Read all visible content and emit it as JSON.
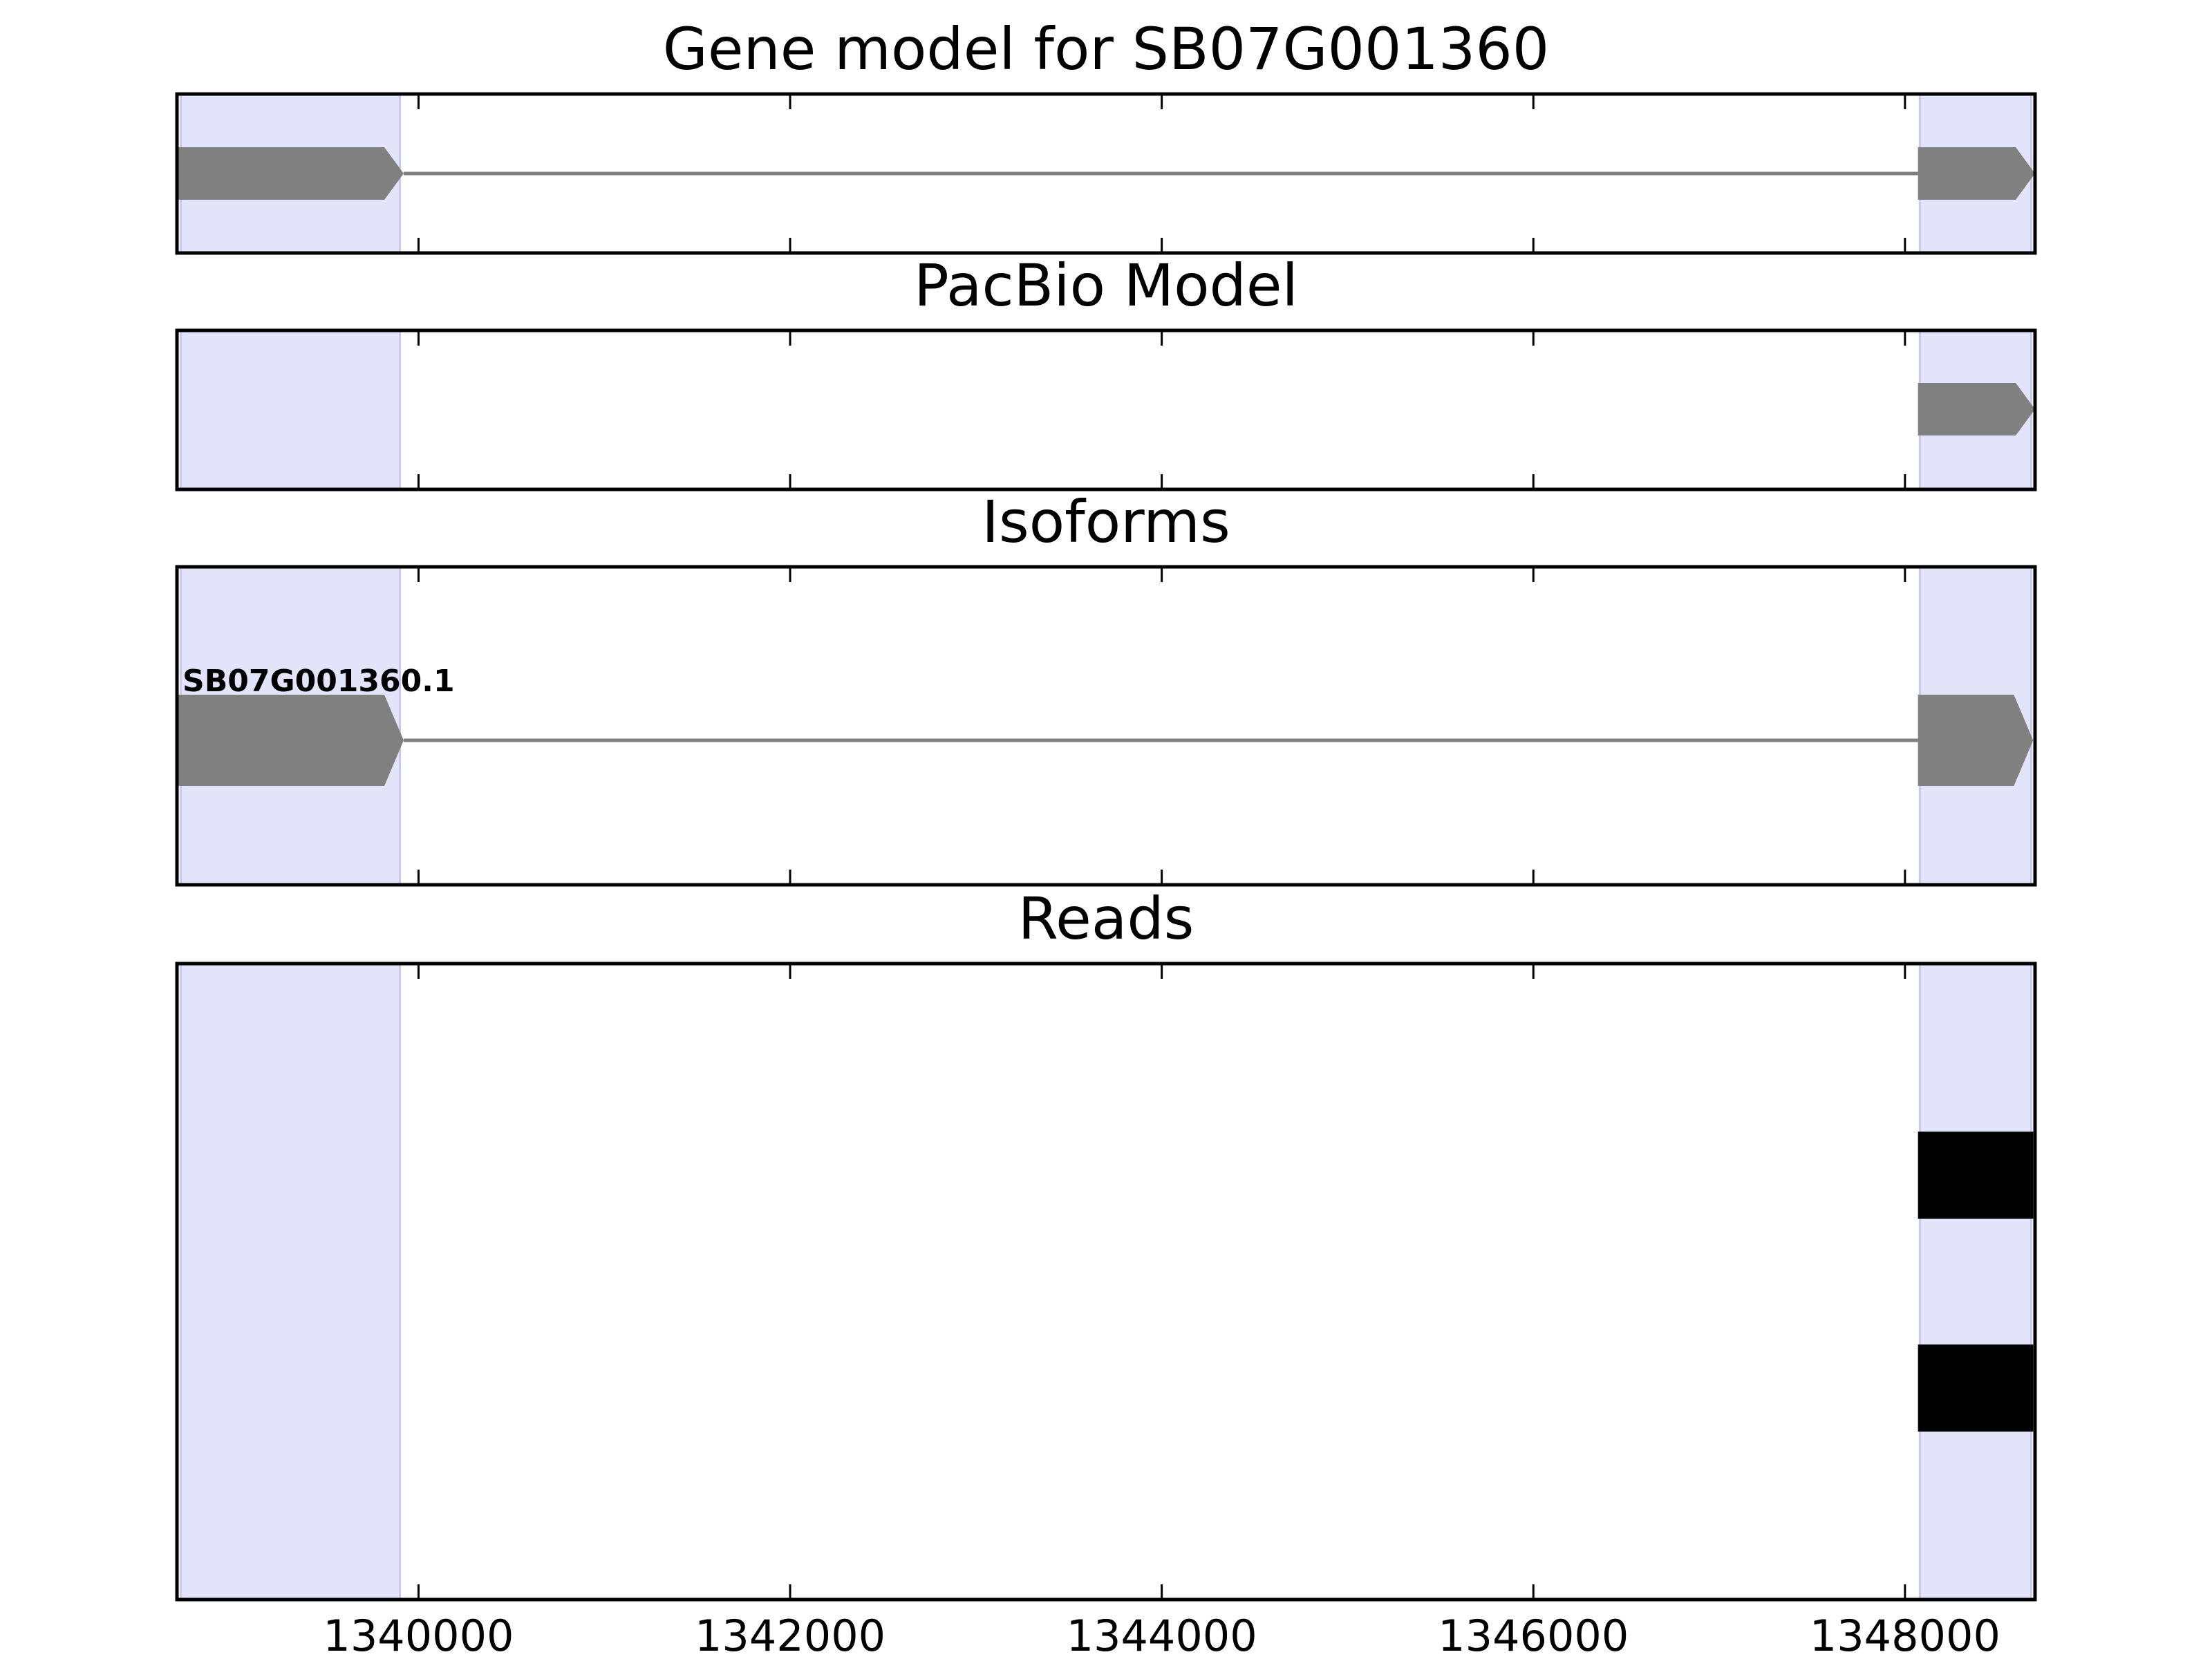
{
  "colors": {
    "exon_fill": "#808080",
    "intron_line": "#808080",
    "read_fill": "#000000",
    "highlight": "#e3e3fa",
    "axes": "#000000"
  },
  "chart_data": {
    "type": "gene-track",
    "x_axis": {
      "xlim": [
        1338700,
        1348700
      ],
      "ticks": [
        1340000,
        1342000,
        1344000,
        1346000,
        1348000
      ],
      "tick_labels": [
        "1340000",
        "1342000",
        "1344000",
        "1346000",
        "1348000"
      ]
    },
    "highlight_regions": [
      [
        1338720,
        1339900
      ],
      [
        1348080,
        1348680
      ]
    ],
    "panels": [
      {
        "title": "Gene model for SB07G001360",
        "features": [
          {
            "kind": "exon",
            "start": 1338700,
            "end": 1339920,
            "strand": "+",
            "row": 0
          },
          {
            "kind": "exon",
            "start": 1348070,
            "end": 1348700,
            "strand": "+",
            "row": 0
          }
        ],
        "introns": [
          {
            "start": 1339920,
            "end": 1348070,
            "row": 0
          }
        ]
      },
      {
        "title": "PacBio Model",
        "features": [
          {
            "kind": "exon",
            "start": 1348070,
            "end": 1348700,
            "strand": "+",
            "row": 0
          }
        ],
        "introns": []
      },
      {
        "title": "Isoforms",
        "isoform_label": "SB07G001360.1",
        "features": [
          {
            "kind": "exon",
            "start": 1338700,
            "end": 1339920,
            "strand": "+",
            "row": 0
          },
          {
            "kind": "exon",
            "start": 1348070,
            "end": 1348690,
            "strand": "+",
            "row": 0
          }
        ],
        "introns": [
          {
            "start": 1339920,
            "end": 1348070,
            "row": 0
          }
        ]
      },
      {
        "title": "Reads",
        "reads": [
          {
            "start": 1348070,
            "end": 1348690
          },
          {
            "start": 1348070,
            "end": 1348690
          }
        ]
      }
    ]
  }
}
